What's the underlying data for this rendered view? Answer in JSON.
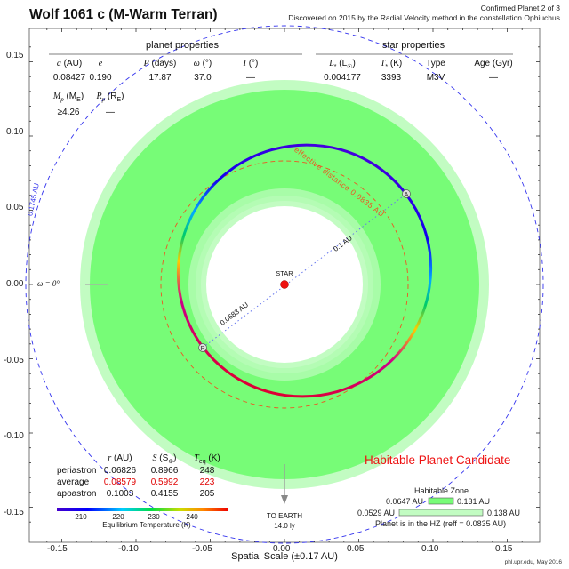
{
  "header": {
    "title": "Wolf 1061 c (M-Warm Terran)",
    "subtitle_line1": "Confirmed Planet 2 of 3",
    "subtitle_line2": "Discovered on 2015 by the Radial Velocity method in the constellation Ophiuchus"
  },
  "planet_properties": {
    "section_label": "planet properties",
    "headers": [
      "a (AU)",
      "e",
      "P (days)",
      "ω (°)",
      "I (°)"
    ],
    "values": [
      "0.08427",
      "0.190",
      "17.87",
      "37.0",
      "—"
    ],
    "headers2": [
      "Mp (ME)",
      "Rp (RE)"
    ],
    "values2": [
      "≥4.26",
      "—"
    ]
  },
  "star_properties": {
    "section_label": "star properties",
    "headers": [
      "L* (L☉)",
      "T* (K)",
      "Type",
      "Age (Gyr)"
    ],
    "values": [
      "0.004177",
      "3393",
      "M3V",
      "—"
    ]
  },
  "orbit_table": {
    "headers": [
      "r (AU)",
      "S (S⊕)",
      "Teq (K)"
    ],
    "rows": [
      {
        "label": "periastron",
        "r": "0.06826",
        "s": "0.8966",
        "teq": "248"
      },
      {
        "label": "average",
        "r": "0.08579",
        "s": "0.5992",
        "teq": "223"
      },
      {
        "label": "apoastron",
        "r": "0.1003",
        "s": "0.4155",
        "teq": "205"
      }
    ]
  },
  "colorbar": {
    "ticks": [
      "210",
      "220",
      "230",
      "240"
    ],
    "label": "Equilibrium Temperature (K)"
  },
  "annotations": {
    "star_label": "STAR",
    "effective_distance": "effective distance 0.0835 AU",
    "apo_distance": "0.1 AU",
    "peri_distance": "0.0683 AU",
    "periastron_marker": "P",
    "apoastron_marker": "A",
    "omega_zero": "ω = 0°",
    "blue_circle_label": "0.1745 AU",
    "to_earth": "TO EARTH",
    "earth_distance": "14.0 ly"
  },
  "habitable": {
    "status": "Habitable Planet Candidate",
    "zone_title": "Habitable Zone",
    "conservative_inner": "0.0647 AU",
    "conservative_outer": "0.131 AU",
    "optimistic_inner": "0.0529 AU",
    "optimistic_outer": "0.138 AU",
    "summary": "Planet is in the HZ (reff = 0.0835 AU)"
  },
  "axes": {
    "x_ticks": [
      "-0.15",
      "-0.10",
      "-0.05",
      "0.00",
      "0.05",
      "0.10",
      "0.15"
    ],
    "y_ticks": [
      "0.15",
      "0.10",
      "0.05",
      "0.00",
      "-0.05",
      "-0.10",
      "-0.15"
    ],
    "xlabel": "Spatial Scale (±0.17 AU)"
  },
  "credit": "phl.upr.edu, May 2016",
  "colors": {
    "hz_conservative": "#77fc77",
    "hz_optimistic": "#c2fcc2",
    "hz_inner_fade": "#a8fca8",
    "star": "#ee1111",
    "effective_circle": "#ee5522",
    "blue_circle": "#3333ee",
    "status_red": "#ee1111"
  }
}
